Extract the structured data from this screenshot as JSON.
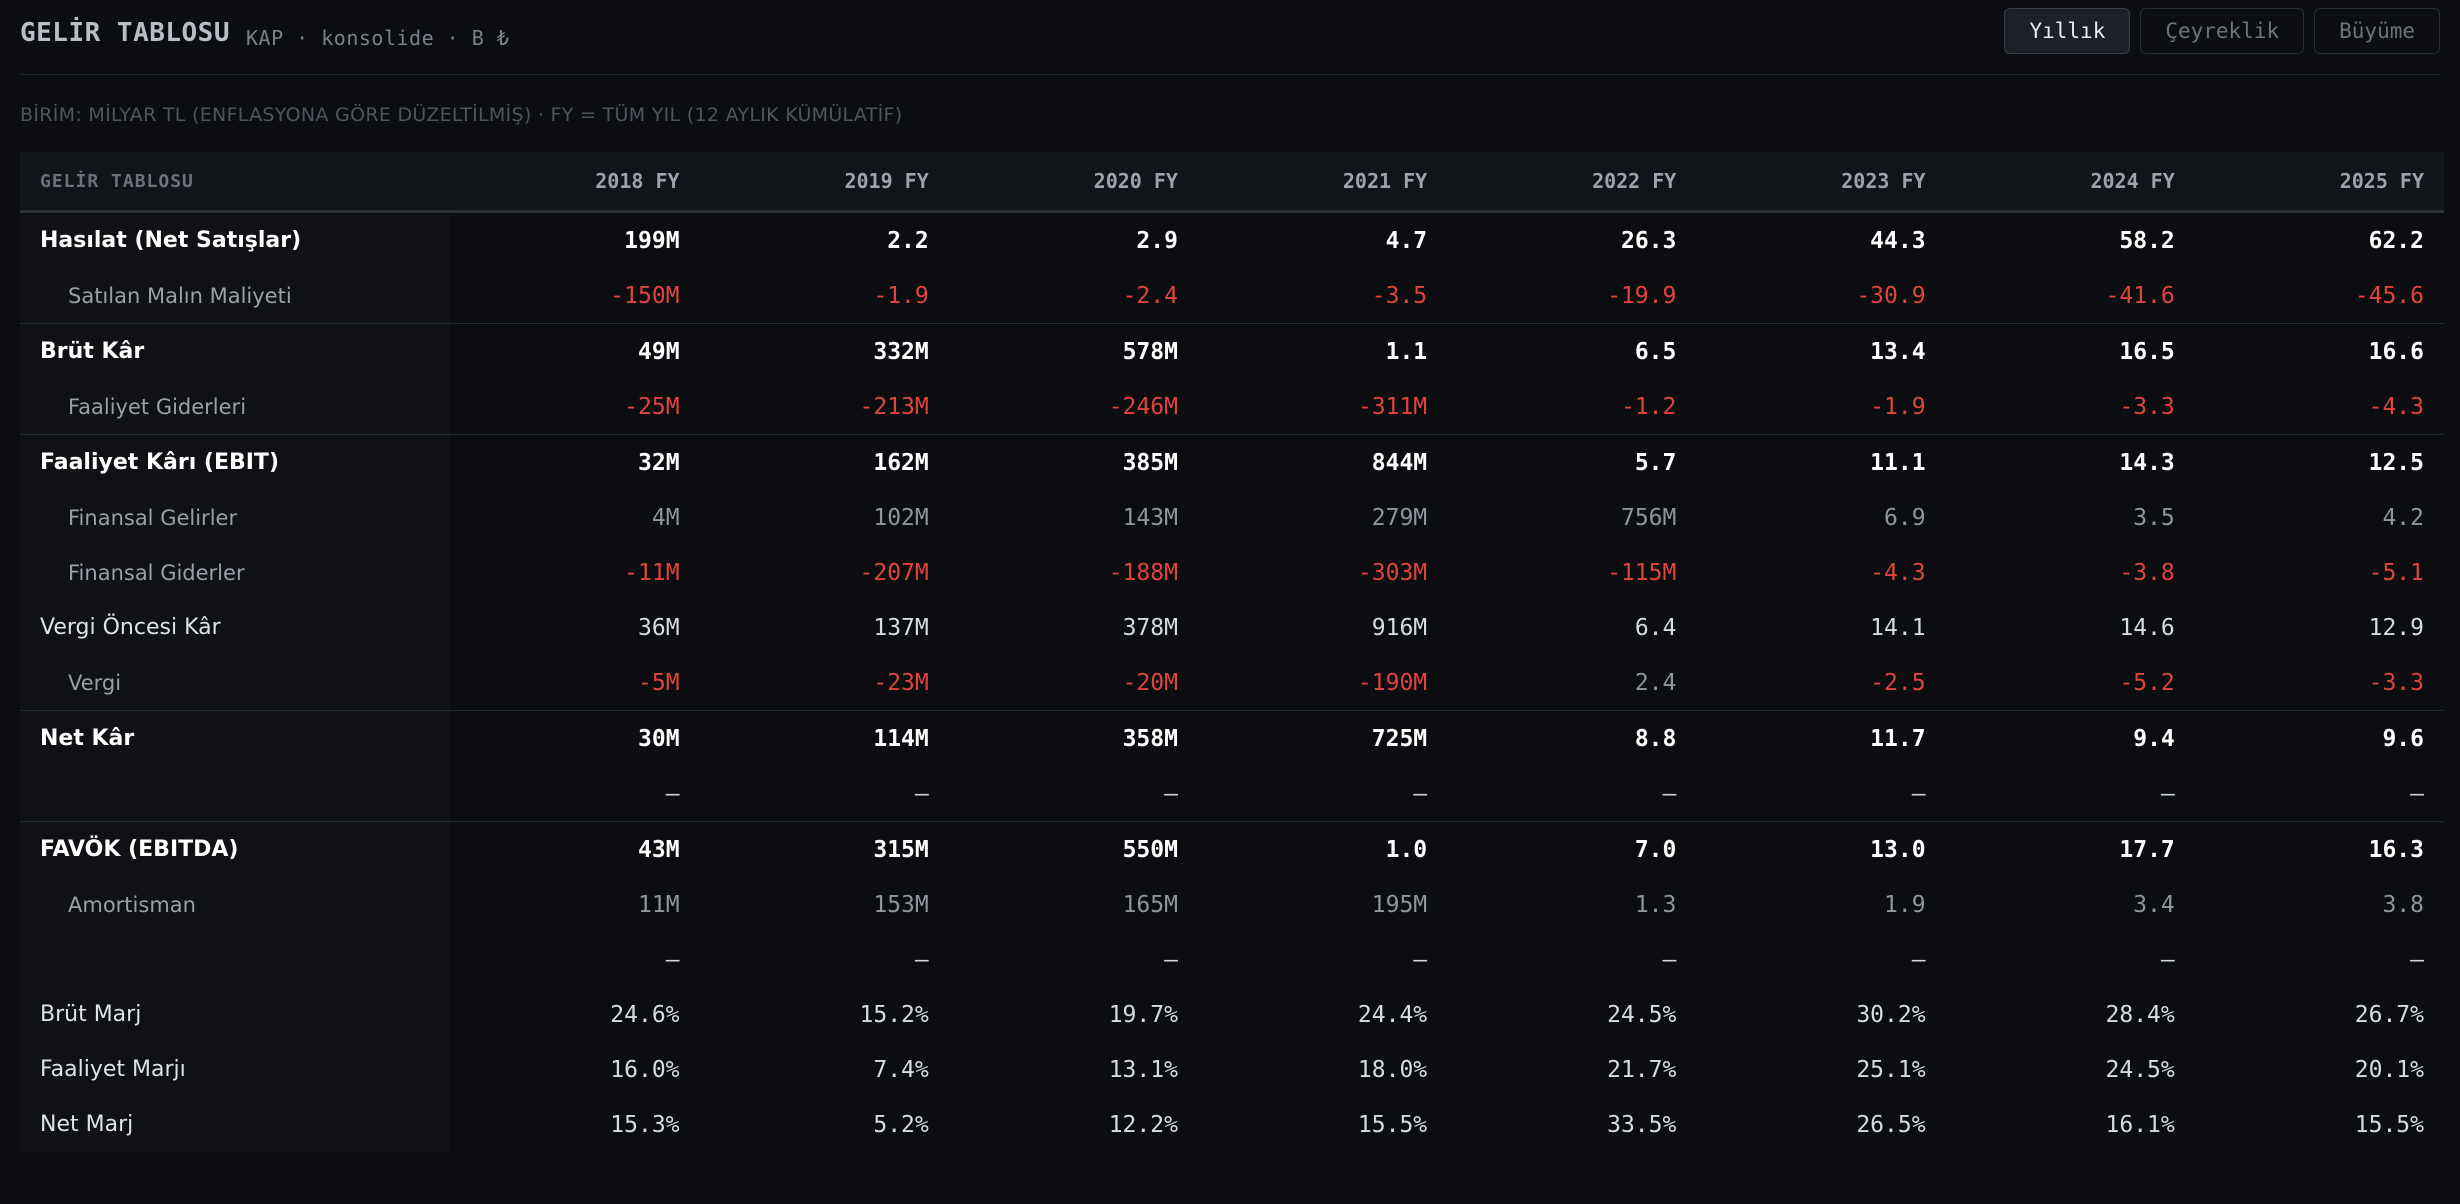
{
  "header": {
    "title": "GELİR TABLOSU",
    "subtitle": "KAP · konsolide · B ₺"
  },
  "tabs": [
    {
      "label": "Yıllık",
      "active": true
    },
    {
      "label": "Çeyreklik",
      "active": false
    },
    {
      "label": "Büyüme",
      "active": false
    }
  ],
  "note": "BİRİM: MİLYAR TL (ENFLASYONA GÖRE DÜZELTİLMİŞ) · FY = TÜM YIL (12 AYLIK KÜMÜLATİF)",
  "table": {
    "label_header": "GELİR TABLOSU",
    "columns": [
      "2018 FY",
      "2019 FY",
      "2020 FY",
      "2021 FY",
      "2022 FY",
      "2023 FY",
      "2024 FY",
      "2025 FY"
    ],
    "rows": [
      {
        "label": "Hasılat (Net Satışlar)",
        "style": "bold",
        "topline": false,
        "values": [
          "199M",
          "2.2",
          "2.9",
          "4.7",
          "26.3",
          "44.3",
          "58.2",
          "62.2"
        ]
      },
      {
        "label": "Satılan Malın Maliyeti",
        "style": "sub",
        "topline": false,
        "values": [
          "-150M",
          "-1.9",
          "-2.4",
          "-3.5",
          "-19.9",
          "-30.9",
          "-41.6",
          "-45.6"
        ]
      },
      {
        "label": "Brüt Kâr",
        "style": "bold",
        "topline": true,
        "values": [
          "49M",
          "332M",
          "578M",
          "1.1",
          "6.5",
          "13.4",
          "16.5",
          "16.6"
        ]
      },
      {
        "label": "Faaliyet Giderleri",
        "style": "sub",
        "topline": false,
        "values": [
          "-25M",
          "-213M",
          "-246M",
          "-311M",
          "-1.2",
          "-1.9",
          "-3.3",
          "-4.3"
        ]
      },
      {
        "label": "Faaliyet Kârı (EBIT)",
        "style": "bold",
        "topline": true,
        "values": [
          "32M",
          "162M",
          "385M",
          "844M",
          "5.7",
          "11.1",
          "14.3",
          "12.5"
        ]
      },
      {
        "label": "Finansal Gelirler",
        "style": "sub",
        "topline": false,
        "values": [
          "4M",
          "102M",
          "143M",
          "279M",
          "756M",
          "6.9",
          "3.5",
          "4.2"
        ]
      },
      {
        "label": "Finansal Giderler",
        "style": "sub",
        "topline": false,
        "values": [
          "-11M",
          "-207M",
          "-188M",
          "-303M",
          "-115M",
          "-4.3",
          "-3.8",
          "-5.1"
        ]
      },
      {
        "label": "Vergi Öncesi Kâr",
        "style": "normal",
        "topline": false,
        "values": [
          "36M",
          "137M",
          "378M",
          "916M",
          "6.4",
          "14.1",
          "14.6",
          "12.9"
        ]
      },
      {
        "label": "Vergi",
        "style": "sub",
        "topline": false,
        "values": [
          "-5M",
          "-23M",
          "-20M",
          "-190M",
          "2.4",
          "-2.5",
          "-5.2",
          "-3.3"
        ]
      },
      {
        "label": "Net Kâr",
        "style": "bold",
        "topline": true,
        "values": [
          "30M",
          "114M",
          "358M",
          "725M",
          "8.8",
          "11.7",
          "9.4",
          "9.6"
        ]
      },
      {
        "label": "",
        "style": "spacer",
        "topline": false,
        "values": [
          "—",
          "—",
          "—",
          "—",
          "—",
          "—",
          "—",
          "—"
        ]
      },
      {
        "label": "FAVÖK (EBITDA)",
        "style": "bold",
        "topline": true,
        "values": [
          "43M",
          "315M",
          "550M",
          "1.0",
          "7.0",
          "13.0",
          "17.7",
          "16.3"
        ]
      },
      {
        "label": "Amortisman",
        "style": "sub",
        "topline": false,
        "values": [
          "11M",
          "153M",
          "165M",
          "195M",
          "1.3",
          "1.9",
          "3.4",
          "3.8"
        ]
      },
      {
        "label": "",
        "style": "spacer",
        "topline": false,
        "values": [
          "—",
          "—",
          "—",
          "—",
          "—",
          "—",
          "—",
          "—"
        ]
      },
      {
        "label": "Brüt Marj",
        "style": "normal",
        "topline": false,
        "values": [
          "24.6%",
          "15.2%",
          "19.7%",
          "24.4%",
          "24.5%",
          "30.2%",
          "28.4%",
          "26.7%"
        ]
      },
      {
        "label": "Faaliyet Marjı",
        "style": "normal",
        "topline": false,
        "values": [
          "16.0%",
          "7.4%",
          "13.1%",
          "18.0%",
          "21.7%",
          "25.1%",
          "24.5%",
          "20.1%"
        ]
      },
      {
        "label": "Net Marj",
        "style": "normal",
        "topline": false,
        "values": [
          "15.3%",
          "5.2%",
          "12.2%",
          "15.5%",
          "33.5%",
          "26.5%",
          "16.1%",
          "15.5%"
        ]
      }
    ]
  },
  "colors": {
    "negative": "#e0453d",
    "background": "#0b0d11"
  }
}
